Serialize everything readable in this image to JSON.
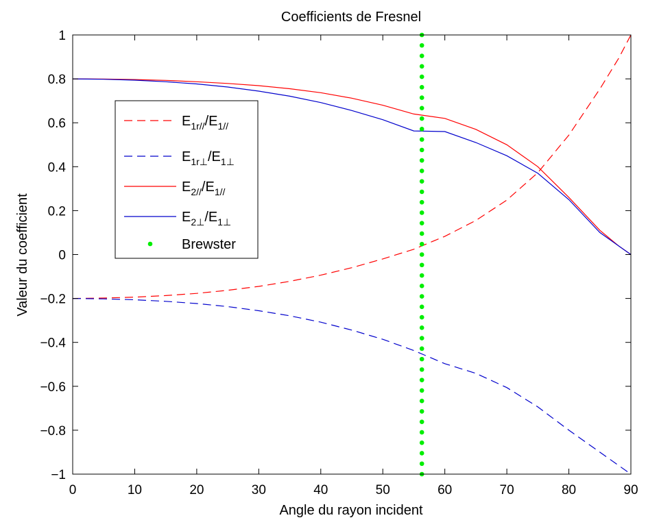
{
  "chart_data": {
    "type": "line",
    "title": "Coefficients de Fresnel",
    "xlabel": "Angle du rayon incident",
    "ylabel": "Valeur du coefficient",
    "xlim": [
      0,
      90
    ],
    "ylim": [
      -1,
      1
    ],
    "xticks": [
      "0",
      "10",
      "20",
      "30",
      "40",
      "50",
      "60",
      "70",
      "80",
      "90"
    ],
    "yticks": [
      "1",
      "0.8",
      "0.6",
      "0.4",
      "0.2",
      "0",
      "−0.2",
      "−0.4",
      "−0.6",
      "−0.8",
      "−1"
    ],
    "grid": false,
    "legend_position": "upper-left",
    "x": [
      0,
      5,
      10,
      15,
      20,
      25,
      30,
      35,
      40,
      45,
      50,
      55,
      56.3,
      60,
      65,
      70,
      75,
      80,
      85,
      88,
      90
    ],
    "series": [
      {
        "name_main": "E",
        "name_sub1": "1r//",
        "name_mid": "/E",
        "name_sub2": "1//",
        "color": "#ff0000",
        "style": "dashed",
        "values": [
          -0.2,
          -0.198,
          -0.194,
          -0.187,
          -0.177,
          -0.163,
          -0.145,
          -0.122,
          -0.094,
          -0.06,
          -0.02,
          0.024,
          0.0,
          0.083,
          0.155,
          0.248,
          0.373,
          0.544,
          0.754,
          0.892,
          1.0
        ]
      },
      {
        "name_main": "E",
        "name_sub1": "1r⊥",
        "name_mid": "/E",
        "name_sub2": "1⊥",
        "color": "#0000cc",
        "style": "dashed",
        "values": [
          -0.2,
          -0.202,
          -0.206,
          -0.213,
          -0.223,
          -0.237,
          -0.256,
          -0.279,
          -0.308,
          -0.344,
          -0.386,
          -0.437,
          -0.382,
          -0.497,
          -0.541,
          -0.606,
          -0.694,
          -0.8,
          -0.9,
          -0.96,
          -1.0
        ]
      },
      {
        "name_main": "E",
        "name_sub1": "2//",
        "name_mid": "/E",
        "name_sub2": "1//",
        "color": "#ff0000",
        "style": "solid",
        "values": [
          0.8,
          0.799,
          0.797,
          0.793,
          0.787,
          0.779,
          0.769,
          0.755,
          0.737,
          0.712,
          0.68,
          0.64,
          0.666,
          0.62,
          0.57,
          0.5,
          0.4,
          0.26,
          0.11,
          0.04,
          0.0
        ]
      },
      {
        "name_main": "E",
        "name_sub1": "2⊥",
        "name_mid": "/E",
        "name_sub2": "1⊥",
        "color": "#0000cc",
        "style": "solid",
        "values": [
          0.8,
          0.798,
          0.794,
          0.787,
          0.777,
          0.763,
          0.744,
          0.721,
          0.692,
          0.656,
          0.614,
          0.563,
          0.613,
          0.56,
          0.51,
          0.45,
          0.37,
          0.25,
          0.1,
          0.04,
          0.0
        ]
      }
    ],
    "brewster": {
      "name": "Brewster",
      "x": 56.3,
      "color": "#00ee00"
    }
  }
}
